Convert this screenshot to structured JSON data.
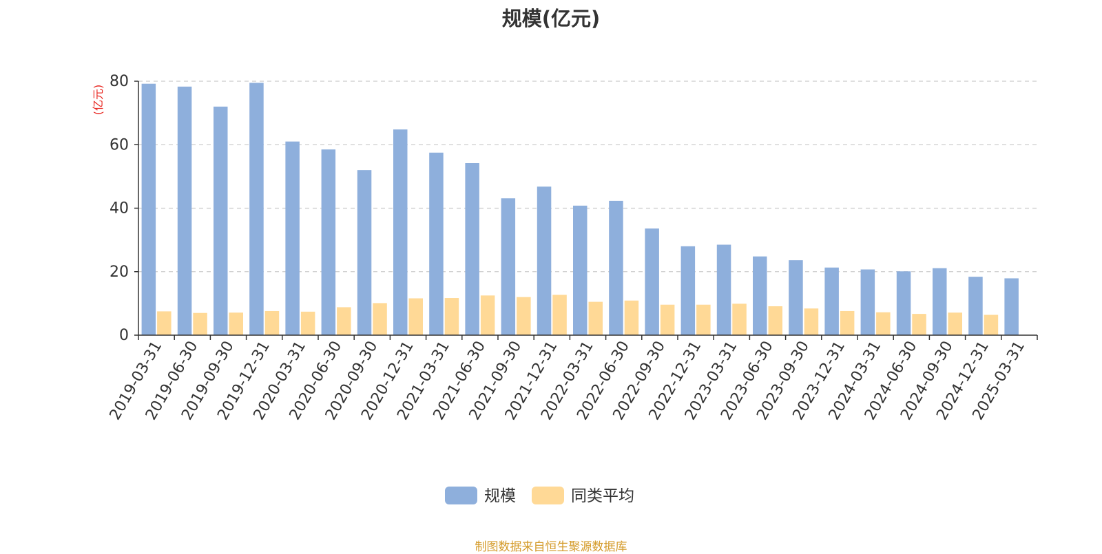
{
  "chart_data": {
    "type": "bar",
    "title": "规模(亿元)",
    "ylabel": "(亿元)",
    "ylim": [
      0,
      80
    ],
    "yticks": [
      0,
      20,
      40,
      60,
      80
    ],
    "grid": true,
    "legend_position": "bottom",
    "categories": [
      "2019-03-31",
      "2019-06-30",
      "2019-09-30",
      "2019-12-31",
      "2020-03-31",
      "2020-06-30",
      "2020-09-30",
      "2020-12-31",
      "2021-03-31",
      "2021-06-30",
      "2021-09-30",
      "2021-12-31",
      "2022-03-31",
      "2022-06-30",
      "2022-09-30",
      "2022-12-31",
      "2023-03-31",
      "2023-06-30",
      "2023-09-30",
      "2023-12-31",
      "2024-03-31",
      "2024-06-30",
      "2024-09-30",
      "2024-12-31",
      "2025-03-31"
    ],
    "series": [
      {
        "name": "规模",
        "color": "#8eafdc",
        "values": [
          79.2,
          78.3,
          72.0,
          79.5,
          61.0,
          58.5,
          52.0,
          64.8,
          57.5,
          54.2,
          43.1,
          46.8,
          40.8,
          42.3,
          33.6,
          28.0,
          28.5,
          24.8,
          23.6,
          21.3,
          20.7,
          20.1,
          21.1,
          18.4,
          17.9
        ]
      },
      {
        "name": "同类平均",
        "color": "#ffd996",
        "values": [
          7.5,
          7.0,
          7.1,
          7.6,
          7.4,
          8.8,
          10.1,
          11.6,
          11.7,
          12.5,
          12.0,
          12.7,
          10.5,
          10.9,
          9.6,
          9.6,
          9.9,
          9.1,
          8.4,
          7.6,
          7.2,
          6.7,
          7.1,
          6.4,
          null
        ]
      }
    ]
  },
  "footer": {
    "source": "制图数据来自恒生聚源数据库"
  }
}
